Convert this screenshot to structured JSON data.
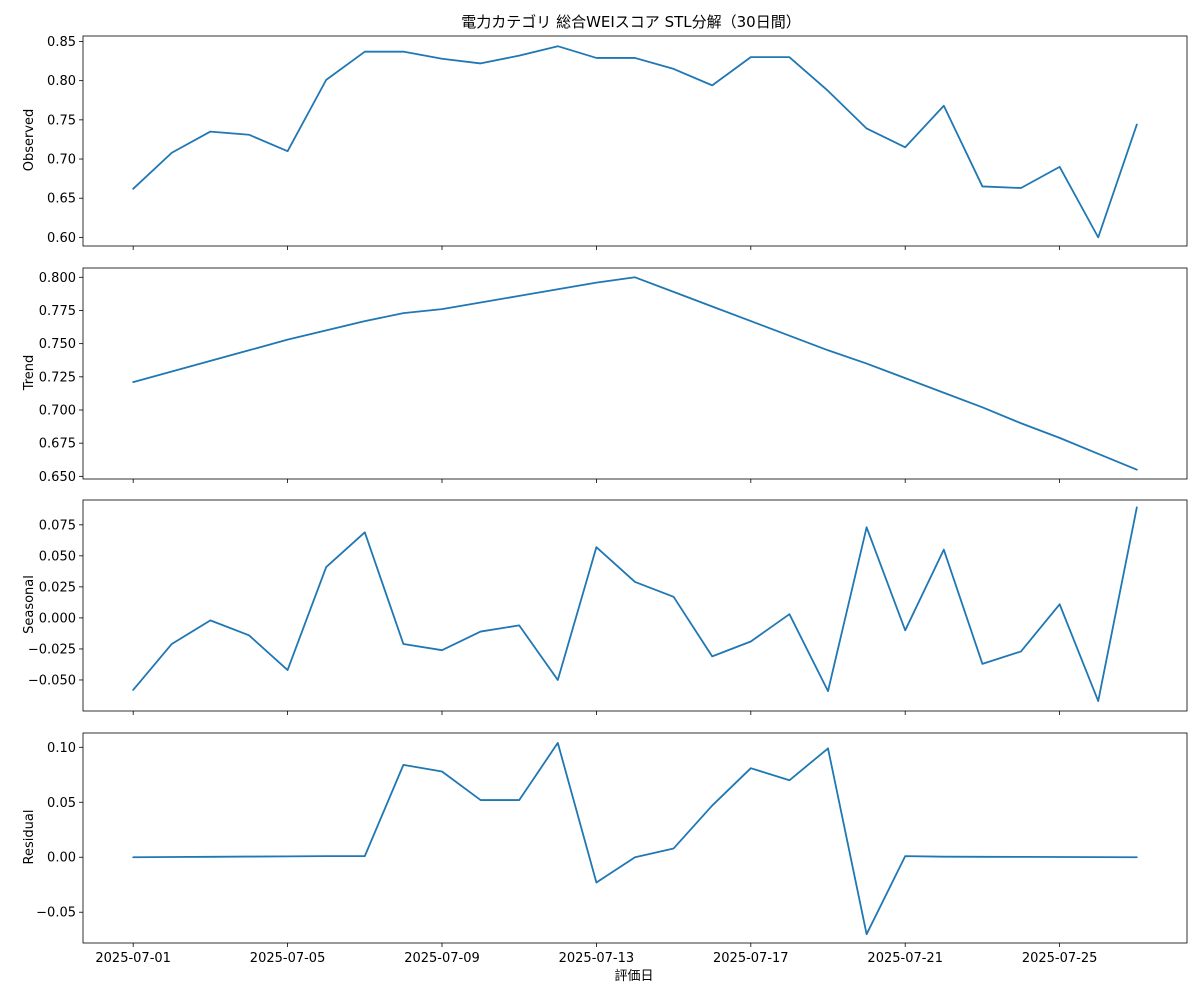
{
  "chart_data": {
    "type": "line",
    "title": "電力カテゴリ 総合WEIスコア STL分解（30日間）",
    "xlabel": "評価日",
    "x": [
      "2025-07-01",
      "2025-07-02",
      "2025-07-03",
      "2025-07-04",
      "2025-07-05",
      "2025-07-06",
      "2025-07-07",
      "2025-07-08",
      "2025-07-09",
      "2025-07-10",
      "2025-07-11",
      "2025-07-12",
      "2025-07-13",
      "2025-07-14",
      "2025-07-15",
      "2025-07-16",
      "2025-07-17",
      "2025-07-18",
      "2025-07-19",
      "2025-07-20",
      "2025-07-21",
      "2025-07-22",
      "2025-07-23",
      "2025-07-24",
      "2025-07-25",
      "2025-07-26",
      "2025-07-27"
    ],
    "xticks": [
      "2025-07-01",
      "2025-07-05",
      "2025-07-09",
      "2025-07-13",
      "2025-07-17",
      "2025-07-21",
      "2025-07-25"
    ],
    "xlim": [
      "2025-06-29.7",
      "2025-07-28.3"
    ],
    "line_color": "#1f77b4",
    "panels": [
      {
        "ylabel": "Observed",
        "ylim": [
          0.589,
          0.857
        ],
        "yticks": [
          0.6,
          0.65,
          0.7,
          0.75,
          0.8,
          0.85
        ],
        "ytick_labels": [
          "0.60",
          "0.65",
          "0.70",
          "0.75",
          "0.80",
          "0.85"
        ],
        "values": [
          0.662,
          0.708,
          0.735,
          0.731,
          0.71,
          0.801,
          0.837,
          0.837,
          0.828,
          0.822,
          0.832,
          0.844,
          0.829,
          0.829,
          0.815,
          0.794,
          0.83,
          0.83,
          0.787,
          0.739,
          0.715,
          0.768,
          0.665,
          0.663,
          0.69,
          0.6,
          0.744
        ]
      },
      {
        "ylabel": "Trend",
        "ylim": [
          0.648,
          0.807
        ],
        "yticks": [
          0.65,
          0.675,
          0.7,
          0.725,
          0.75,
          0.775,
          0.8
        ],
        "ytick_labels": [
          "0.650",
          "0.675",
          "0.700",
          "0.725",
          "0.750",
          "0.775",
          "0.800"
        ],
        "values": [
          0.721,
          0.729,
          0.737,
          0.745,
          0.753,
          0.76,
          0.767,
          0.773,
          0.776,
          0.781,
          0.786,
          0.791,
          0.796,
          0.8,
          0.789,
          0.778,
          0.767,
          0.756,
          0.745,
          0.735,
          0.724,
          0.713,
          0.702,
          0.69,
          0.679,
          0.667,
          0.655
        ]
      },
      {
        "ylabel": "Seasonal",
        "ylim": [
          -0.075,
          0.095
        ],
        "yticks": [
          -0.05,
          -0.025,
          0.0,
          0.025,
          0.05,
          0.075
        ],
        "ytick_labels": [
          "−0.050",
          "−0.025",
          "0.000",
          "0.025",
          "0.050",
          "0.075"
        ],
        "values": [
          -0.058,
          -0.021,
          -0.002,
          -0.014,
          -0.042,
          0.041,
          0.069,
          -0.021,
          -0.026,
          -0.011,
          -0.006,
          -0.05,
          0.057,
          0.029,
          0.017,
          -0.031,
          -0.019,
          0.003,
          -0.059,
          0.073,
          -0.01,
          0.055,
          -0.037,
          -0.027,
          0.011,
          -0.067,
          0.089
        ]
      },
      {
        "ylabel": "Residual",
        "ylim": [
          -0.078,
          0.113
        ],
        "yticks": [
          -0.05,
          0.0,
          0.05,
          0.1
        ],
        "ytick_labels": [
          "−0.05",
          "0.00",
          "0.05",
          "0.10"
        ],
        "values": [
          0.0,
          0.0002,
          0.0004,
          0.0006,
          0.0008,
          0.001,
          0.001,
          0.084,
          0.078,
          0.052,
          0.052,
          0.104,
          -0.023,
          0.0,
          0.008,
          0.047,
          0.081,
          0.07,
          0.099,
          -0.07,
          0.001,
          0.0005,
          0.0004,
          0.0003,
          0.0002,
          0.0001,
          0.0
        ]
      }
    ]
  }
}
